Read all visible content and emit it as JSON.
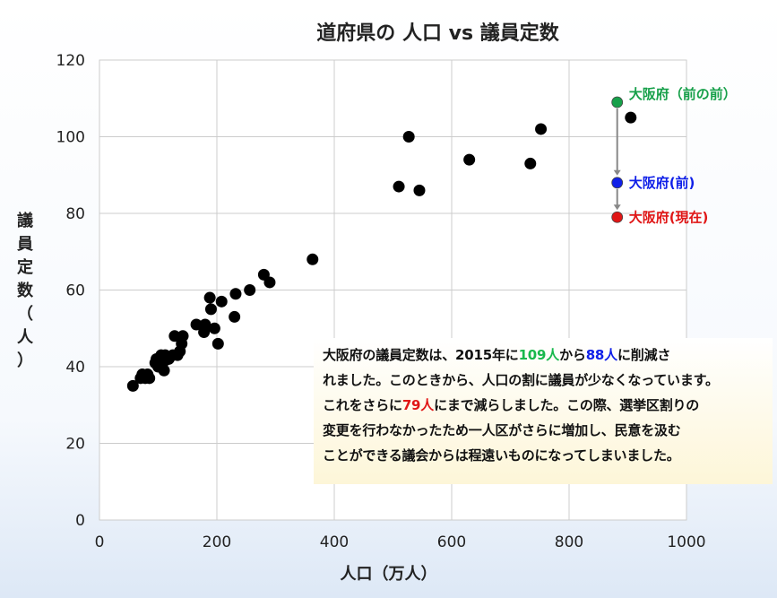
{
  "chart_data": {
    "type": "scatter",
    "title": "道府県の 人口 vs 議員定数",
    "xlabel": "人口（万人）",
    "ylabel": [
      "議",
      "員",
      "定",
      "数",
      "（",
      "人",
      "）"
    ],
    "xlim": [
      0,
      1000
    ],
    "ylim": [
      0,
      120
    ],
    "xticks": [
      0,
      200,
      400,
      600,
      800,
      1000
    ],
    "yticks": [
      0,
      20,
      40,
      60,
      80,
      100,
      120
    ],
    "grid": true,
    "points": [
      {
        "x": 57,
        "y": 35
      },
      {
        "x": 70,
        "y": 37
      },
      {
        "x": 73,
        "y": 38
      },
      {
        "x": 78,
        "y": 37
      },
      {
        "x": 82,
        "y": 38
      },
      {
        "x": 85,
        "y": 37
      },
      {
        "x": 95,
        "y": 41
      },
      {
        "x": 97,
        "y": 42
      },
      {
        "x": 100,
        "y": 40
      },
      {
        "x": 105,
        "y": 43
      },
      {
        "x": 108,
        "y": 41
      },
      {
        "x": 110,
        "y": 39
      },
      {
        "x": 112,
        "y": 43
      },
      {
        "x": 118,
        "y": 42
      },
      {
        "x": 125,
        "y": 43
      },
      {
        "x": 128,
        "y": 48
      },
      {
        "x": 133,
        "y": 43
      },
      {
        "x": 137,
        "y": 44
      },
      {
        "x": 140,
        "y": 46
      },
      {
        "x": 142,
        "y": 48
      },
      {
        "x": 165,
        "y": 51
      },
      {
        "x": 178,
        "y": 49
      },
      {
        "x": 180,
        "y": 51
      },
      {
        "x": 188,
        "y": 58
      },
      {
        "x": 190,
        "y": 55
      },
      {
        "x": 196,
        "y": 50
      },
      {
        "x": 202,
        "y": 46
      },
      {
        "x": 208,
        "y": 57
      },
      {
        "x": 230,
        "y": 53
      },
      {
        "x": 232,
        "y": 59
      },
      {
        "x": 256,
        "y": 60
      },
      {
        "x": 280,
        "y": 64
      },
      {
        "x": 290,
        "y": 62
      },
      {
        "x": 363,
        "y": 68
      },
      {
        "x": 510,
        "y": 87
      },
      {
        "x": 527,
        "y": 100
      },
      {
        "x": 545,
        "y": 86
      },
      {
        "x": 630,
        "y": 94
      },
      {
        "x": 734,
        "y": 93
      },
      {
        "x": 752,
        "y": 102
      },
      {
        "x": 905,
        "y": 105
      }
    ],
    "highlight": [
      {
        "x": 882,
        "y": 109,
        "label": "大阪府（前の前）",
        "color": "#17a04a"
      },
      {
        "x": 882,
        "y": 88,
        "label": "大阪府(前)",
        "color": "#1020e8"
      },
      {
        "x": 882,
        "y": 79,
        "label": "大阪府(現在)",
        "color": "#e01616"
      }
    ]
  },
  "note": {
    "l1a": "大阪府の議員定数は、2015年に",
    "l1g": "109人",
    "l1b": "から",
    "l1c": "88人",
    "l1d": "に削減さ",
    "l2": "れました。このときから、人口の割に議員が少なくなっています。",
    "l3a": "これをさらに",
    "l3r": "79人",
    "l3b": "にまで減らしました。この際、選挙区割りの",
    "l4": "変更を行わなかったため一人区がさらに増加し、民意を汲む",
    "l5": "ことができる議会からは程遠いものになってしまいました。"
  },
  "colors": {
    "point": "#000000",
    "grid": "#cccccc",
    "arrow": "#888888"
  }
}
